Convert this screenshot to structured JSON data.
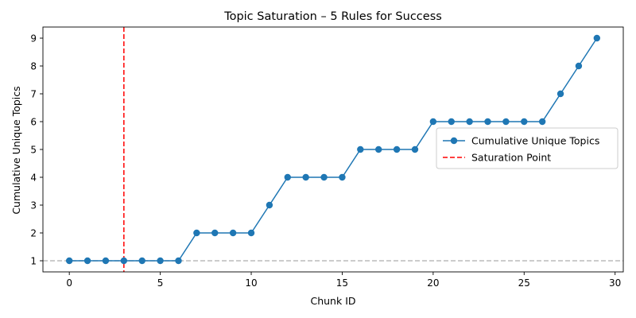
{
  "chart_data": {
    "type": "line",
    "title": "Topic Saturation – 5 Rules for Success",
    "xlabel": "Chunk ID",
    "ylabel": "Cumulative Unique Topics",
    "xlim": [
      -1.45,
      30.45
    ],
    "ylim": [
      0.6,
      9.4
    ],
    "xticks": [
      0,
      5,
      10,
      15,
      20,
      25,
      30
    ],
    "yticks": [
      1,
      2,
      3,
      4,
      5,
      6,
      7,
      8,
      9
    ],
    "grid": false,
    "legend_position": "center-right",
    "series": [
      {
        "name": "Cumulative Unique Topics",
        "color": "#1f77b4",
        "marker": "circle",
        "x": [
          0,
          1,
          2,
          3,
          4,
          5,
          6,
          7,
          8,
          9,
          10,
          11,
          12,
          13,
          14,
          15,
          16,
          17,
          18,
          19,
          20,
          21,
          22,
          23,
          24,
          25,
          26,
          27,
          28,
          29
        ],
        "y": [
          1,
          1,
          1,
          1,
          1,
          1,
          1,
          2,
          2,
          2,
          2,
          3,
          4,
          4,
          4,
          4,
          5,
          5,
          5,
          5,
          6,
          6,
          6,
          6,
          6,
          6,
          6,
          7,
          8,
          9
        ]
      }
    ],
    "annotations": [
      {
        "type": "vline",
        "x": 3,
        "color": "#ff0000",
        "style": "dashed",
        "label": "Saturation Point"
      },
      {
        "type": "hline",
        "y": 1,
        "color": "#bbbbbb",
        "style": "dashed"
      }
    ]
  }
}
